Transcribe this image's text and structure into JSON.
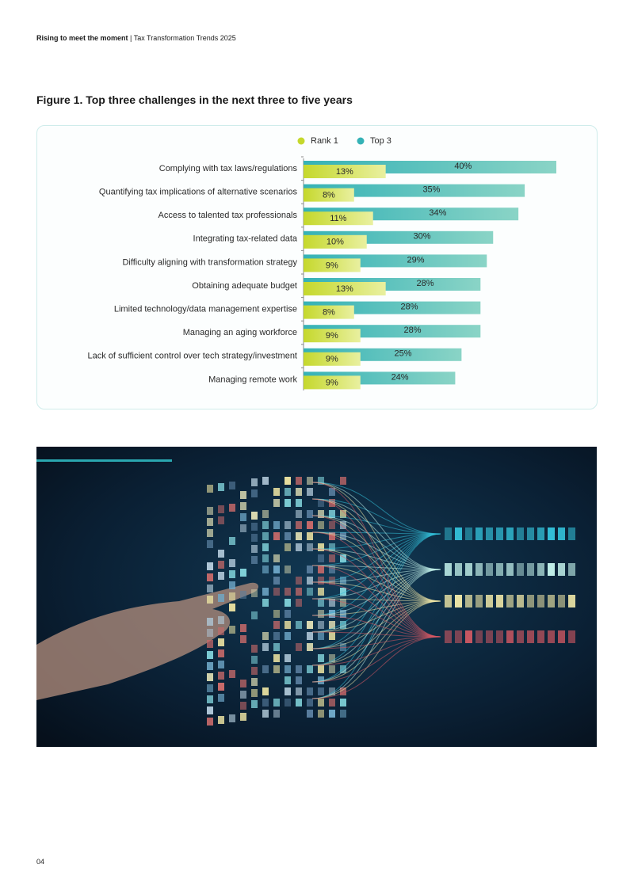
{
  "header": {
    "bold": "Rising to meet the moment",
    "separator": "|",
    "rest": "Tax Transformation Trends 2025"
  },
  "figure_title": "Figure 1. Top three challenges in the next three to five years",
  "chart_data": {
    "type": "bar",
    "orientation": "horizontal",
    "categories": [
      "Complying with tax laws/regulations",
      "Quantifying tax implications of alternative scenarios",
      "Access to talented tax professionals",
      "Integrating tax-related data",
      "Difficulty aligning with transformation strategy",
      "Obtaining adequate budget",
      "Limited technology/data management expertise",
      "Managing an aging workforce",
      "Lack of sufficient control over tech strategy/investment",
      "Managing remote work"
    ],
    "series": [
      {
        "name": "Rank 1",
        "color": "#c5d82c",
        "values": [
          13,
          8,
          11,
          10,
          9,
          13,
          8,
          9,
          9,
          9
        ],
        "value_labels": [
          "13%",
          "8%",
          "11%",
          "10%",
          "9%",
          "13%",
          "8%",
          "9%",
          "9%",
          "9%"
        ]
      },
      {
        "name": "Top 3",
        "color": "#35b2b6",
        "values": [
          40,
          35,
          34,
          30,
          29,
          28,
          28,
          28,
          25,
          24
        ],
        "value_labels": [
          "40%",
          "35%",
          "34%",
          "30%",
          "29%",
          "28%",
          "28%",
          "28%",
          "25%",
          "24%"
        ]
      }
    ],
    "legend": "top"
  },
  "page_number": "04"
}
